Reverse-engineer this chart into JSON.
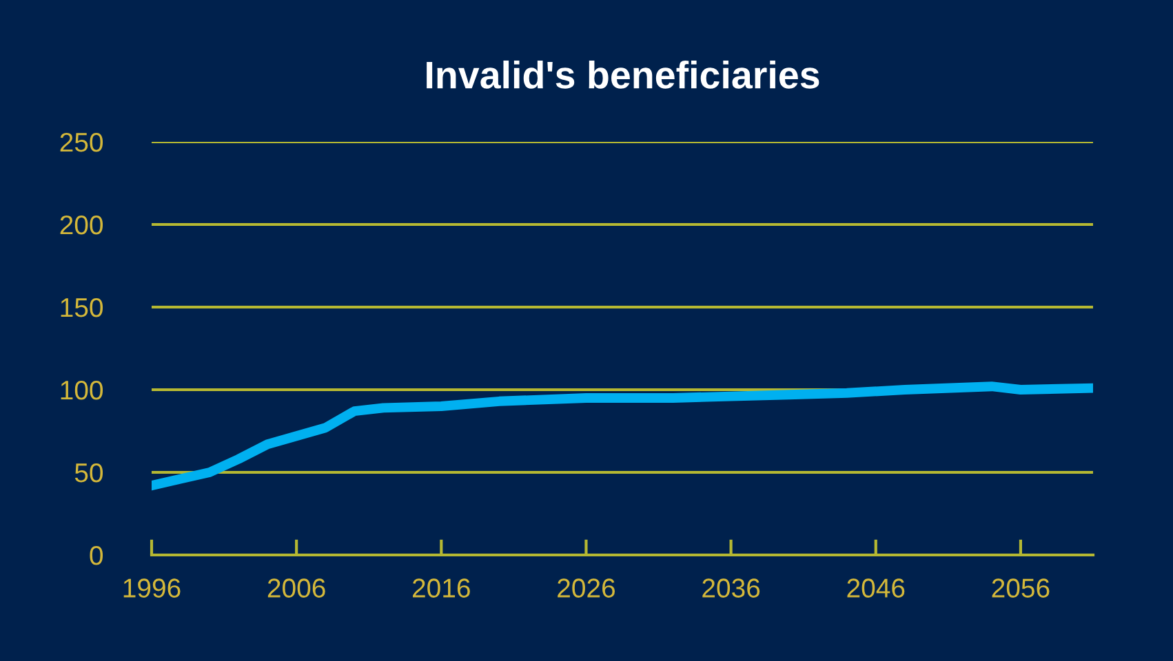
{
  "chart_data": {
    "type": "line",
    "title": "Invalid's beneficiaries",
    "x": [
      1996,
      1998,
      2000,
      2002,
      2004,
      2006,
      2008,
      2010,
      2012,
      2016,
      2020,
      2026,
      2032,
      2036,
      2040,
      2044,
      2048,
      2054,
      2056,
      2061
    ],
    "series": [
      {
        "color": "#00b0f0",
        "values": [
          42,
          46,
          50,
          58,
          67,
          72,
          77,
          87,
          89,
          90,
          93,
          95,
          95,
          96,
          97,
          98,
          100,
          102,
          100,
          101
        ]
      }
    ],
    "xlim": [
      1996,
      2061
    ],
    "xticks": [
      1996,
      2006,
      2016,
      2026,
      2036,
      2046,
      2056
    ],
    "ylim": [
      0,
      250
    ],
    "yticks": [
      0,
      50,
      100,
      150,
      200,
      250
    ],
    "grid": "y",
    "marker": "none",
    "line_style": "solid"
  }
}
